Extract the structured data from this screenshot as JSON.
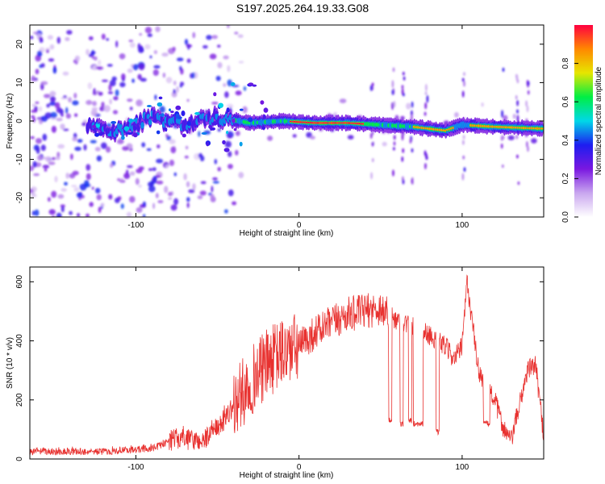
{
  "title": "S197.2025.264.19.33.G08",
  "chart_data": [
    {
      "type": "heatmap",
      "xlabel": "Height of straight line (km)",
      "ylabel": "Frequency (Hz)",
      "xlim": [
        -165,
        150
      ],
      "ylim": [
        -25,
        25
      ],
      "xticks": [
        -100,
        0,
        100
      ],
      "yticks": [
        -20,
        -10,
        0,
        10,
        20
      ],
      "colorbar": {
        "label": "Normalized spectral amplitude",
        "range": [
          0,
          1
        ],
        "ticks": [
          0.0,
          0.2,
          0.4,
          0.6,
          0.8
        ],
        "tick_labels": [
          "0.0",
          "0.2",
          "0.4",
          "0.6",
          "0.8"
        ],
        "colors": [
          "#ffffff",
          "#c9a6ef",
          "#7a18e0",
          "#1d1df0",
          "#00d8e8",
          "#00ee44",
          "#e6e600",
          "#ff8800",
          "#ff0040"
        ]
      },
      "ridge": [
        {
          "x": -130,
          "y": -1.5
        },
        {
          "x": -110,
          "y": -2.5
        },
        {
          "x": -90,
          "y": 1
        },
        {
          "x": -70,
          "y": -1
        },
        {
          "x": -50,
          "y": 1
        },
        {
          "x": -30,
          "y": -0.5
        },
        {
          "x": -10,
          "y": 0
        },
        {
          "x": 10,
          "y": -0.5
        },
        {
          "x": 30,
          "y": -0.5
        },
        {
          "x": 50,
          "y": -1
        },
        {
          "x": 70,
          "y": -1.5
        },
        {
          "x": 90,
          "y": -2.5
        },
        {
          "x": 100,
          "y": -1
        },
        {
          "x": 120,
          "y": -1.5
        },
        {
          "x": 150,
          "y": -2
        }
      ]
    },
    {
      "type": "line",
      "xlabel": "Height of straight line (km)",
      "ylabel": "SNR (10 * v/v)",
      "xlim": [
        -165,
        150
      ],
      "ylim": [
        0,
        650
      ],
      "xticks": [
        -100,
        0,
        100
      ],
      "yticks": [
        0,
        200,
        400,
        600
      ],
      "color": "#e8312f",
      "series_trend": [
        {
          "x": -165,
          "y": 25
        },
        {
          "x": -120,
          "y": 25
        },
        {
          "x": -90,
          "y": 35
        },
        {
          "x": -75,
          "y": 70
        },
        {
          "x": -60,
          "y": 60
        },
        {
          "x": -50,
          "y": 100
        },
        {
          "x": -40,
          "y": 180
        },
        {
          "x": -30,
          "y": 260
        },
        {
          "x": -20,
          "y": 320
        },
        {
          "x": -10,
          "y": 360
        },
        {
          "x": 0,
          "y": 380
        },
        {
          "x": 10,
          "y": 430
        },
        {
          "x": 20,
          "y": 460
        },
        {
          "x": 30,
          "y": 490
        },
        {
          "x": 40,
          "y": 500
        },
        {
          "x": 50,
          "y": 510
        },
        {
          "x": 55,
          "y": 490
        },
        {
          "x": 60,
          "y": 470
        },
        {
          "x": 70,
          "y": 450
        },
        {
          "x": 80,
          "y": 420
        },
        {
          "x": 90,
          "y": 380
        },
        {
          "x": 95,
          "y": 340
        },
        {
          "x": 100,
          "y": 380
        },
        {
          "x": 103,
          "y": 600
        },
        {
          "x": 110,
          "y": 300
        },
        {
          "x": 115,
          "y": 250
        },
        {
          "x": 120,
          "y": 200
        },
        {
          "x": 125,
          "y": 110
        },
        {
          "x": 130,
          "y": 60
        },
        {
          "x": 135,
          "y": 180
        },
        {
          "x": 140,
          "y": 300
        },
        {
          "x": 145,
          "y": 320
        },
        {
          "x": 150,
          "y": 80
        }
      ],
      "dropouts": [
        {
          "x0": 55,
          "x1": 57,
          "y": 130
        },
        {
          "x0": 62,
          "x1": 64,
          "y": 120
        },
        {
          "x0": 67,
          "x1": 69,
          "y": 130
        },
        {
          "x0": 70,
          "x1": 76,
          "y": 120
        },
        {
          "x0": 84,
          "x1": 86,
          "y": 90
        },
        {
          "x0": 113,
          "x1": 117,
          "y": 120
        }
      ]
    }
  ]
}
